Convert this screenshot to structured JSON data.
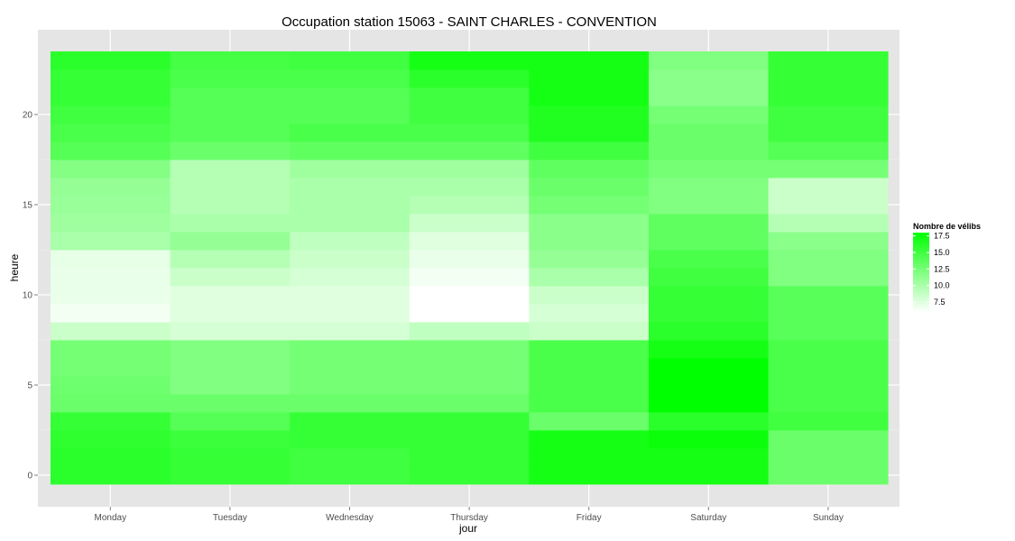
{
  "chart_data": {
    "type": "heatmap",
    "title": "Occupation station 15063 - SAINT CHARLES - CONVENTION",
    "xlabel": "jour",
    "ylabel": "heure",
    "x": [
      "Monday",
      "Tuesday",
      "Wednesday",
      "Thursday",
      "Friday",
      "Saturday",
      "Sunday"
    ],
    "y": [
      0,
      1,
      2,
      3,
      4,
      5,
      6,
      7,
      8,
      9,
      10,
      11,
      12,
      13,
      14,
      15,
      16,
      17,
      18,
      19,
      20,
      21,
      22,
      23
    ],
    "ylim": [
      -0.5,
      23.5
    ],
    "y_ticks": [
      0,
      5,
      10,
      15,
      20
    ],
    "grid": true,
    "legend": {
      "title": "Nombre de vélibs",
      "placement": "right",
      "ticks": [
        17.5,
        15.0,
        12.5,
        10.0,
        7.5
      ],
      "tick_labels": [
        "17.5",
        "15.0",
        "12.5",
        "10.0",
        "7.5"
      ],
      "min": 6.0,
      "max": 18.0,
      "color_low": "#ffffff",
      "color_high": "#00ff00"
    },
    "values_note": "values[dayIndex][hour]",
    "values": [
      [
        16.0,
        16.0,
        15.8,
        15.5,
        13.0,
        12.8,
        12.5,
        12.5,
        8.5,
        6.5,
        7.0,
        7.0,
        7.2,
        10.0,
        10.5,
        10.8,
        11.0,
        11.8,
        14.0,
        14.5,
        15.0,
        15.5,
        15.5,
        16.0
      ],
      [
        15.5,
        15.5,
        15.2,
        14.0,
        13.0,
        12.0,
        12.0,
        12.0,
        8.0,
        7.5,
        7.5,
        8.5,
        9.5,
        11.0,
        10.0,
        9.5,
        9.5,
        9.5,
        13.0,
        14.0,
        14.0,
        14.0,
        14.5,
        14.8
      ],
      [
        15.0,
        15.0,
        15.5,
        15.5,
        13.0,
        12.5,
        12.5,
        12.5,
        8.0,
        7.5,
        7.5,
        8.0,
        8.5,
        9.0,
        10.0,
        10.0,
        10.0,
        10.5,
        13.5,
        14.5,
        14.0,
        14.0,
        14.5,
        15.0
      ],
      [
        15.5,
        15.5,
        15.5,
        15.5,
        13.0,
        12.5,
        12.5,
        12.5,
        9.0,
        6.0,
        6.0,
        6.5,
        7.0,
        7.5,
        8.5,
        9.5,
        10.0,
        10.5,
        13.5,
        14.5,
        15.0,
        15.0,
        16.0,
        17.0
      ],
      [
        17.0,
        17.0,
        17.0,
        13.0,
        14.5,
        14.5,
        14.5,
        14.5,
        8.5,
        8.0,
        8.5,
        10.0,
        11.0,
        11.5,
        11.5,
        12.5,
        13.0,
        13.5,
        15.0,
        16.5,
        16.5,
        17.0,
        17.0,
        17.0
      ],
      [
        17.0,
        17.0,
        17.5,
        16.0,
        18.0,
        18.0,
        18.0,
        17.0,
        16.0,
        15.5,
        15.5,
        15.0,
        14.5,
        13.5,
        13.5,
        12.0,
        12.0,
        12.5,
        13.0,
        13.0,
        12.5,
        11.5,
        11.5,
        12.0
      ],
      [
        13.0,
        13.0,
        13.0,
        15.0,
        14.5,
        14.5,
        14.5,
        14.5,
        13.8,
        13.8,
        13.8,
        12.0,
        12.0,
        11.5,
        9.5,
        8.5,
        8.5,
        12.5,
        14.0,
        15.0,
        15.0,
        15.5,
        15.5,
        15.5
      ]
    ]
  }
}
